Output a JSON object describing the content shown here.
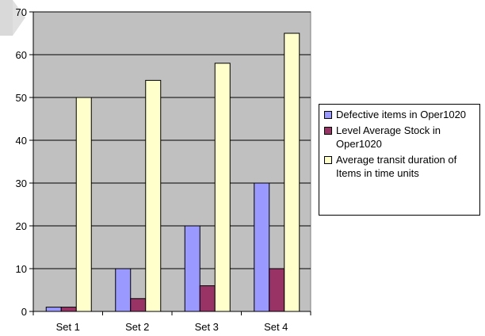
{
  "chart_data": {
    "type": "bar",
    "categories": [
      "Set 1",
      "Set 2",
      "Set 3",
      "Set 4"
    ],
    "series": [
      {
        "name": "Defective items in Oper1020",
        "values": [
          1,
          10,
          20,
          30
        ],
        "color": "#9999ff"
      },
      {
        "name": "Level Average Stock in Oper1020",
        "values": [
          1,
          3,
          6,
          10
        ],
        "color": "#993366"
      },
      {
        "name": "Average transit duration of Items in time units",
        "values": [
          50,
          54,
          58,
          65
        ],
        "color": "#ffffcc"
      }
    ],
    "ylim": [
      0,
      70
    ],
    "yticks": [
      0,
      10,
      20,
      30,
      40,
      50,
      60,
      70
    ],
    "grid": true,
    "plot_background": "#c0c0c0",
    "legend_position": "right",
    "title": "",
    "xlabel": "",
    "ylabel": ""
  }
}
